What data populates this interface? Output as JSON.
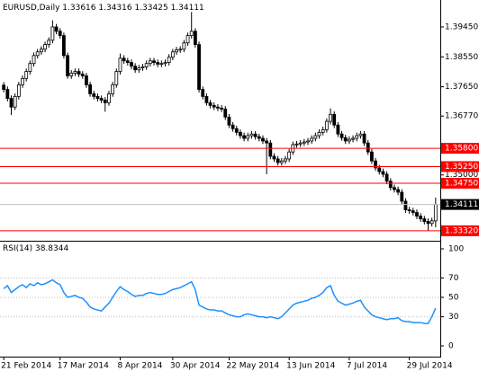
{
  "chart_data": {
    "type": "candlestick",
    "title": "EURUSD,Daily",
    "open": [
      1.377,
      1.3757,
      1.373,
      1.3704,
      1.3736,
      1.3771,
      1.379,
      1.3811,
      1.3835,
      1.3859,
      1.387,
      1.3878,
      1.3892,
      1.3905,
      1.3945,
      1.3932,
      1.3919,
      1.3859,
      1.3798,
      1.3806,
      1.3811,
      1.3803,
      1.3798,
      1.3771,
      1.3744,
      1.3736,
      1.373,
      1.3725,
      1.3717,
      1.3744,
      1.3771,
      1.3811,
      1.3851,
      1.3843,
      1.3838,
      1.3827,
      1.3816,
      1.3822,
      1.3825,
      1.3835,
      1.3843,
      1.3838,
      1.3833,
      1.3835,
      1.3838,
      1.3854,
      1.387,
      1.3876,
      1.3878,
      1.3897,
      1.3919,
      1.3932,
      1.3892,
      1.3757,
      1.3736,
      1.3717,
      1.3709,
      1.3704,
      1.3701,
      1.3698,
      1.3674,
      1.365,
      1.3639,
      1.3628,
      1.3618,
      1.361,
      1.3618,
      1.3623,
      1.3615,
      1.361,
      1.3602,
      1.3596,
      1.3556,
      1.3548,
      1.3537,
      1.3542,
      1.3548,
      1.3569,
      1.3591,
      1.3593,
      1.3596,
      1.3599,
      1.3602,
      1.361,
      1.3618,
      1.3628,
      1.3636,
      1.3661,
      1.3682,
      1.365,
      1.3623,
      1.3612,
      1.3602,
      1.3607,
      1.361,
      1.3618,
      1.3623,
      1.3596,
      1.3569,
      1.3542,
      1.3521,
      1.351,
      1.3502,
      1.3481,
      1.3462,
      1.3456,
      1.3448,
      1.3421,
      1.3395,
      1.3392,
      1.3387,
      1.3376,
      1.3368,
      1.336,
      1.3354,
      1.33616
    ],
    "high": [
      1.3779,
      1.3766,
      1.3739,
      1.3745,
      1.378,
      1.3799,
      1.382,
      1.3844,
      1.3868,
      1.3879,
      1.3887,
      1.3901,
      1.3914,
      1.3965,
      1.3954,
      1.3941,
      1.3928,
      1.3868,
      1.3815,
      1.382,
      1.382,
      1.3812,
      1.3807,
      1.378,
      1.3753,
      1.3745,
      1.3739,
      1.3734,
      1.3753,
      1.378,
      1.382,
      1.3865,
      1.386,
      1.3852,
      1.3847,
      1.3836,
      1.3831,
      1.3834,
      1.3844,
      1.3852,
      1.3852,
      1.3847,
      1.3844,
      1.3847,
      1.3863,
      1.3879,
      1.3885,
      1.3887,
      1.3906,
      1.3928,
      1.399,
      1.3941,
      1.3901,
      1.3766,
      1.3745,
      1.3726,
      1.3718,
      1.3713,
      1.371,
      1.3707,
      1.3683,
      1.3659,
      1.3648,
      1.3637,
      1.3627,
      1.3627,
      1.3632,
      1.3632,
      1.3624,
      1.3619,
      1.3611,
      1.3605,
      1.3565,
      1.3557,
      1.3551,
      1.3557,
      1.3578,
      1.36,
      1.3602,
      1.3605,
      1.3608,
      1.3611,
      1.3619,
      1.3627,
      1.3637,
      1.3645,
      1.367,
      1.37,
      1.3691,
      1.3659,
      1.3632,
      1.3621,
      1.3616,
      1.3619,
      1.3627,
      1.3632,
      1.3632,
      1.3605,
      1.3578,
      1.3551,
      1.353,
      1.3519,
      1.3511,
      1.349,
      1.3471,
      1.3465,
      1.3457,
      1.343,
      1.3404,
      1.3401,
      1.3396,
      1.3385,
      1.3377,
      1.3369,
      1.3371,
      1.34316
    ],
    "low": [
      1.3748,
      1.3721,
      1.368,
      1.3695,
      1.3727,
      1.3762,
      1.3781,
      1.3802,
      1.3826,
      1.385,
      1.3861,
      1.3869,
      1.3883,
      1.3896,
      1.3923,
      1.391,
      1.385,
      1.3789,
      1.3789,
      1.3797,
      1.3794,
      1.3789,
      1.3762,
      1.3735,
      1.3727,
      1.3721,
      1.3716,
      1.369,
      1.3708,
      1.3735,
      1.3762,
      1.3802,
      1.3834,
      1.3829,
      1.3818,
      1.3807,
      1.3807,
      1.3813,
      1.3816,
      1.3826,
      1.3829,
      1.3824,
      1.3824,
      1.3826,
      1.3829,
      1.3845,
      1.3861,
      1.3867,
      1.3869,
      1.3888,
      1.391,
      1.3883,
      1.3748,
      1.3727,
      1.3708,
      1.37,
      1.3695,
      1.3692,
      1.3689,
      1.3665,
      1.3641,
      1.363,
      1.3619,
      1.3609,
      1.3601,
      1.3601,
      1.3609,
      1.3606,
      1.3601,
      1.3593,
      1.3502,
      1.3547,
      1.3539,
      1.3528,
      1.3528,
      1.3533,
      1.3539,
      1.356,
      1.3582,
      1.3584,
      1.3587,
      1.359,
      1.3593,
      1.3601,
      1.3609,
      1.3619,
      1.3627,
      1.3652,
      1.3641,
      1.3614,
      1.3603,
      1.3593,
      1.3593,
      1.3598,
      1.3601,
      1.3609,
      1.3587,
      1.356,
      1.3533,
      1.3512,
      1.3501,
      1.3493,
      1.3472,
      1.3453,
      1.3447,
      1.3439,
      1.3412,
      1.3386,
      1.3383,
      1.3378,
      1.3367,
      1.3359,
      1.3351,
      1.3333,
      1.3345,
      1.33425
    ],
    "close": [
      1.3757,
      1.373,
      1.3704,
      1.3736,
      1.3771,
      1.379,
      1.3811,
      1.3835,
      1.3859,
      1.387,
      1.3878,
      1.3892,
      1.3905,
      1.3945,
      1.3932,
      1.3919,
      1.3859,
      1.3798,
      1.3806,
      1.3811,
      1.3803,
      1.3798,
      1.3771,
      1.3744,
      1.3736,
      1.373,
      1.3725,
      1.3717,
      1.3744,
      1.3771,
      1.3811,
      1.3851,
      1.3843,
      1.3838,
      1.3827,
      1.3816,
      1.3822,
      1.3825,
      1.3835,
      1.3843,
      1.3838,
      1.3833,
      1.3835,
      1.3838,
      1.3854,
      1.387,
      1.3876,
      1.3878,
      1.3897,
      1.3919,
      1.3932,
      1.3892,
      1.3757,
      1.3736,
      1.3717,
      1.3709,
      1.3704,
      1.3701,
      1.3698,
      1.3674,
      1.365,
      1.3639,
      1.3628,
      1.3618,
      1.361,
      1.3618,
      1.3623,
      1.3615,
      1.361,
      1.3602,
      1.3596,
      1.3556,
      1.3548,
      1.3537,
      1.3542,
      1.3548,
      1.3569,
      1.3591,
      1.3593,
      1.3596,
      1.3599,
      1.3602,
      1.361,
      1.3618,
      1.3628,
      1.3636,
      1.3661,
      1.3682,
      1.365,
      1.3623,
      1.3612,
      1.3602,
      1.3607,
      1.361,
      1.3618,
      1.3623,
      1.3596,
      1.3569,
      1.3542,
      1.3521,
      1.351,
      1.3502,
      1.3481,
      1.3462,
      1.3456,
      1.3448,
      1.3421,
      1.3395,
      1.3392,
      1.3387,
      1.3376,
      1.3368,
      1.336,
      1.3354,
      1.3362,
      1.34111
    ],
    "xlim": [
      -1,
      116
    ],
    "xticks": [
      {
        "value": 0,
        "label": "21 Feb 2014"
      },
      {
        "value": 15,
        "label": "17 Mar 2014"
      },
      {
        "value": 31,
        "label": "8 Apr 2014"
      },
      {
        "value": 45,
        "label": "30 Apr 2014"
      },
      {
        "value": 60,
        "label": "22 May 2014"
      },
      {
        "value": 76,
        "label": "13 Jun 2014"
      },
      {
        "value": 92,
        "label": "7 Jul 2014"
      },
      {
        "value": 108,
        "label": "29 Jul 2014"
      }
    ],
    "ylim": [
      1.3302,
      1.4026
    ],
    "yticks": [
      {
        "value": 1.3945,
        "label": "1.39450"
      },
      {
        "value": 1.3855,
        "label": "1.38550"
      },
      {
        "value": 1.3765,
        "label": "1.37650"
      },
      {
        "value": 1.3677,
        "label": "1.36770"
      },
      {
        "value": 1.35,
        "label": "1.35000"
      }
    ],
    "levels": [
      {
        "value": 1.358,
        "label": "1.35800"
      },
      {
        "value": 1.3525,
        "label": "1.35250"
      },
      {
        "value": 1.3475,
        "label": "1.34750"
      },
      {
        "value": 1.3332,
        "label": "1.33320"
      }
    ],
    "level_color": "#ff0000",
    "price_line_color": "#c0c0c0",
    "indicator": {
      "title": "RSI(14)",
      "color": "#1e90ff",
      "values": [
        59,
        62,
        55,
        58,
        61,
        63,
        60,
        64,
        62,
        65,
        63,
        64,
        66,
        68,
        65,
        63,
        55,
        50,
        51,
        52,
        50,
        49,
        45,
        40,
        38,
        37,
        36,
        40,
        44,
        50,
        56,
        61,
        58,
        56,
        53,
        51,
        52,
        52,
        54,
        55,
        54,
        53,
        53,
        54,
        56,
        58,
        59,
        60,
        62,
        64,
        66,
        58,
        42,
        40,
        38,
        37,
        37,
        36,
        36,
        34,
        32,
        31,
        30,
        30,
        32,
        33,
        32,
        31,
        30,
        30,
        29,
        30,
        29,
        28,
        30,
        34,
        38,
        42,
        44,
        45,
        46,
        47,
        49,
        50,
        52,
        55,
        60,
        62,
        52,
        46,
        44,
        42,
        43,
        44,
        46,
        47,
        40,
        36,
        32,
        30,
        29,
        28,
        27,
        28,
        28,
        29,
        26,
        25,
        25,
        24,
        24,
        24,
        23,
        23,
        30,
        38.8344
      ],
      "ylim": [
        0,
        100
      ],
      "yticks": [
        100,
        70,
        50,
        30,
        0
      ]
    }
  }
}
